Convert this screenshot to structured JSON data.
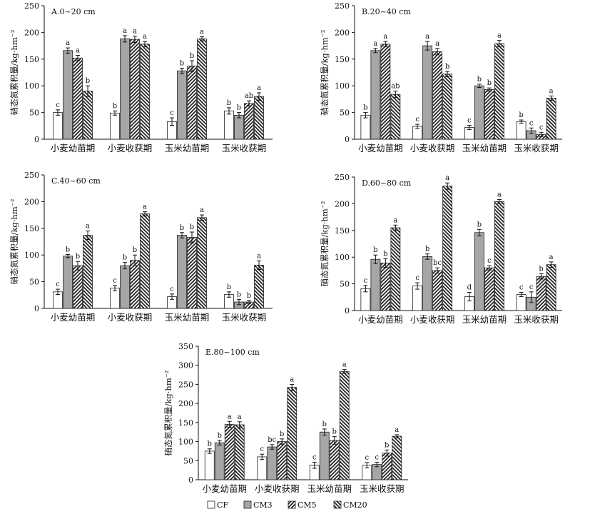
{
  "chart_data": [
    {
      "type": "bar",
      "title": "A.0~20 cm",
      "ylabel": "硝态氮累积量/kg·hm⁻²",
      "ylim": [
        0,
        250
      ],
      "yticks": [
        0,
        50,
        100,
        150,
        200,
        250
      ],
      "categories": [
        "小麦幼苗期",
        "小麦收获期",
        "玉米幼苗期",
        "玉米收获期"
      ],
      "series": [
        {
          "name": "CF",
          "values": [
            50,
            49,
            33,
            53
          ],
          "errors": [
            5,
            4,
            7,
            6
          ],
          "letters": [
            "c",
            "b",
            "c",
            "b"
          ]
        },
        {
          "name": "CM3",
          "values": [
            166,
            188,
            128,
            45
          ],
          "errors": [
            5,
            6,
            5,
            5
          ],
          "letters": [
            "a",
            "a",
            "b",
            "b"
          ]
        },
        {
          "name": "CM5",
          "values": [
            152,
            187,
            137,
            67
          ],
          "errors": [
            5,
            6,
            10,
            5
          ],
          "letters": [
            "a",
            "a",
            "b",
            "ab"
          ]
        },
        {
          "name": "CM20",
          "values": [
            90,
            178,
            188,
            80
          ],
          "errors": [
            10,
            5,
            4,
            7
          ],
          "letters": [
            "b",
            "a",
            "a",
            "a"
          ]
        }
      ]
    },
    {
      "type": "bar",
      "title": "B.20~40 cm",
      "ylabel": "硝态氮累积量/kg·hm⁻²",
      "ylim": [
        0,
        250
      ],
      "yticks": [
        0,
        50,
        100,
        150,
        200,
        250
      ],
      "categories": [
        "小麦幼苗期",
        "小麦收获期",
        "玉米幼苗期",
        "玉米收获期"
      ],
      "series": [
        {
          "name": "CF",
          "values": [
            45,
            24,
            22,
            33
          ],
          "errors": [
            5,
            4,
            4,
            3
          ],
          "letters": [
            "b",
            "c",
            "c",
            "b"
          ]
        },
        {
          "name": "CM3",
          "values": [
            166,
            175,
            100,
            16
          ],
          "errors": [
            4,
            8,
            3,
            5
          ],
          "letters": [
            "a",
            "a",
            "b",
            "c"
          ]
        },
        {
          "name": "CM5",
          "values": [
            178,
            164,
            93,
            9
          ],
          "errors": [
            5,
            6,
            3,
            4
          ],
          "letters": [
            "a",
            "a",
            "b",
            "c"
          ]
        },
        {
          "name": "CM20",
          "values": [
            84,
            122,
            179,
            77
          ],
          "errors": [
            6,
            5,
            6,
            4
          ],
          "letters": [
            "ab",
            "b",
            "a",
            "a"
          ]
        }
      ]
    },
    {
      "type": "bar",
      "title": "C.40~60 cm",
      "ylabel": "硝态氮累积量/kg·hm⁻²",
      "ylim": [
        0,
        250
      ],
      "yticks": [
        0,
        50,
        100,
        150,
        200,
        250
      ],
      "categories": [
        "小麦幼苗期",
        "小麦收获期",
        "玉米幼苗期",
        "玉米收获期"
      ],
      "series": [
        {
          "name": "CF",
          "values": [
            31,
            38,
            22,
            26
          ],
          "errors": [
            5,
            5,
            5,
            5
          ],
          "letters": [
            "c",
            "c",
            "c",
            "b"
          ]
        },
        {
          "name": "CM3",
          "values": [
            98,
            80,
            137,
            12
          ],
          "errors": [
            3,
            6,
            5,
            5
          ],
          "letters": [
            "b",
            "b",
            "b",
            "b"
          ]
        },
        {
          "name": "CM5",
          "values": [
            80,
            90,
            133,
            12
          ],
          "errors": [
            8,
            10,
            10,
            3
          ],
          "letters": [
            "b",
            "b",
            "b",
            "b"
          ]
        },
        {
          "name": "CM20",
          "values": [
            137,
            177,
            170,
            81
          ],
          "errors": [
            8,
            4,
            5,
            8
          ],
          "letters": [
            "a",
            "a",
            "a",
            "a"
          ]
        }
      ]
    },
    {
      "type": "bar",
      "title": "D.60~80 cm",
      "ylabel": "硝态氮累积量/kg·hm⁻²",
      "ylim": [
        0,
        250
      ],
      "yticks": [
        0,
        50,
        100,
        150,
        200,
        250
      ],
      "categories": [
        "小麦幼苗期",
        "小麦收获期",
        "玉米幼苗期",
        "玉米收获期"
      ],
      "series": [
        {
          "name": "CF",
          "values": [
            41,
            46,
            26,
            30
          ],
          "errors": [
            6,
            6,
            8,
            4
          ],
          "letters": [
            "c",
            "c",
            "d",
            "c"
          ]
        },
        {
          "name": "CM3",
          "values": [
            96,
            101,
            146,
            25
          ],
          "errors": [
            8,
            5,
            6,
            10
          ],
          "letters": [
            "b",
            "b",
            "b",
            "c"
          ]
        },
        {
          "name": "CM5",
          "values": [
            89,
            75,
            80,
            64
          ],
          "errors": [
            8,
            5,
            4,
            5
          ],
          "letters": [
            "b",
            "bc",
            "c",
            "b"
          ]
        },
        {
          "name": "CM20",
          "values": [
            155,
            233,
            204,
            86
          ],
          "errors": [
            5,
            6,
            4,
            5
          ],
          "letters": [
            "a",
            "a",
            "a",
            "a"
          ]
        }
      ]
    },
    {
      "type": "bar",
      "title": "E.80~100 cm",
      "ylabel": "硝态氮累积量/kg·hm⁻²",
      "ylim": [
        0,
        350
      ],
      "yticks": [
        0,
        50,
        100,
        150,
        200,
        250,
        300,
        350
      ],
      "categories": [
        "小麦幼苗期",
        "小麦收获期",
        "玉米幼苗期",
        "玉米收获期"
      ],
      "series": [
        {
          "name": "CF",
          "values": [
            75,
            60,
            38,
            38
          ],
          "errors": [
            6,
            7,
            8,
            7
          ],
          "letters": [
            "b",
            "c",
            "c",
            "c"
          ]
        },
        {
          "name": "CM3",
          "values": [
            97,
            86,
            125,
            40
          ],
          "errors": [
            6,
            6,
            8,
            6
          ],
          "letters": [
            "b",
            "bc",
            "b",
            "c"
          ]
        },
        {
          "name": "CM5",
          "values": [
            145,
            100,
            103,
            70
          ],
          "errors": [
            8,
            7,
            10,
            8
          ],
          "letters": [
            "a",
            "b",
            "b",
            "b"
          ]
        },
        {
          "name": "CM20",
          "values": [
            144,
            242,
            284,
            114
          ],
          "errors": [
            8,
            8,
            5,
            4
          ],
          "letters": [
            "a",
            "a",
            "a",
            "a"
          ]
        }
      ]
    }
  ],
  "legend": [
    "CF",
    "CM3",
    "CM5",
    "CM20"
  ],
  "legend_placement": "bottom-center",
  "grid": false,
  "colors": {
    "axis": "#111111",
    "cm3_fill": "#a6a6a6",
    "bar_stroke": "#222222"
  }
}
